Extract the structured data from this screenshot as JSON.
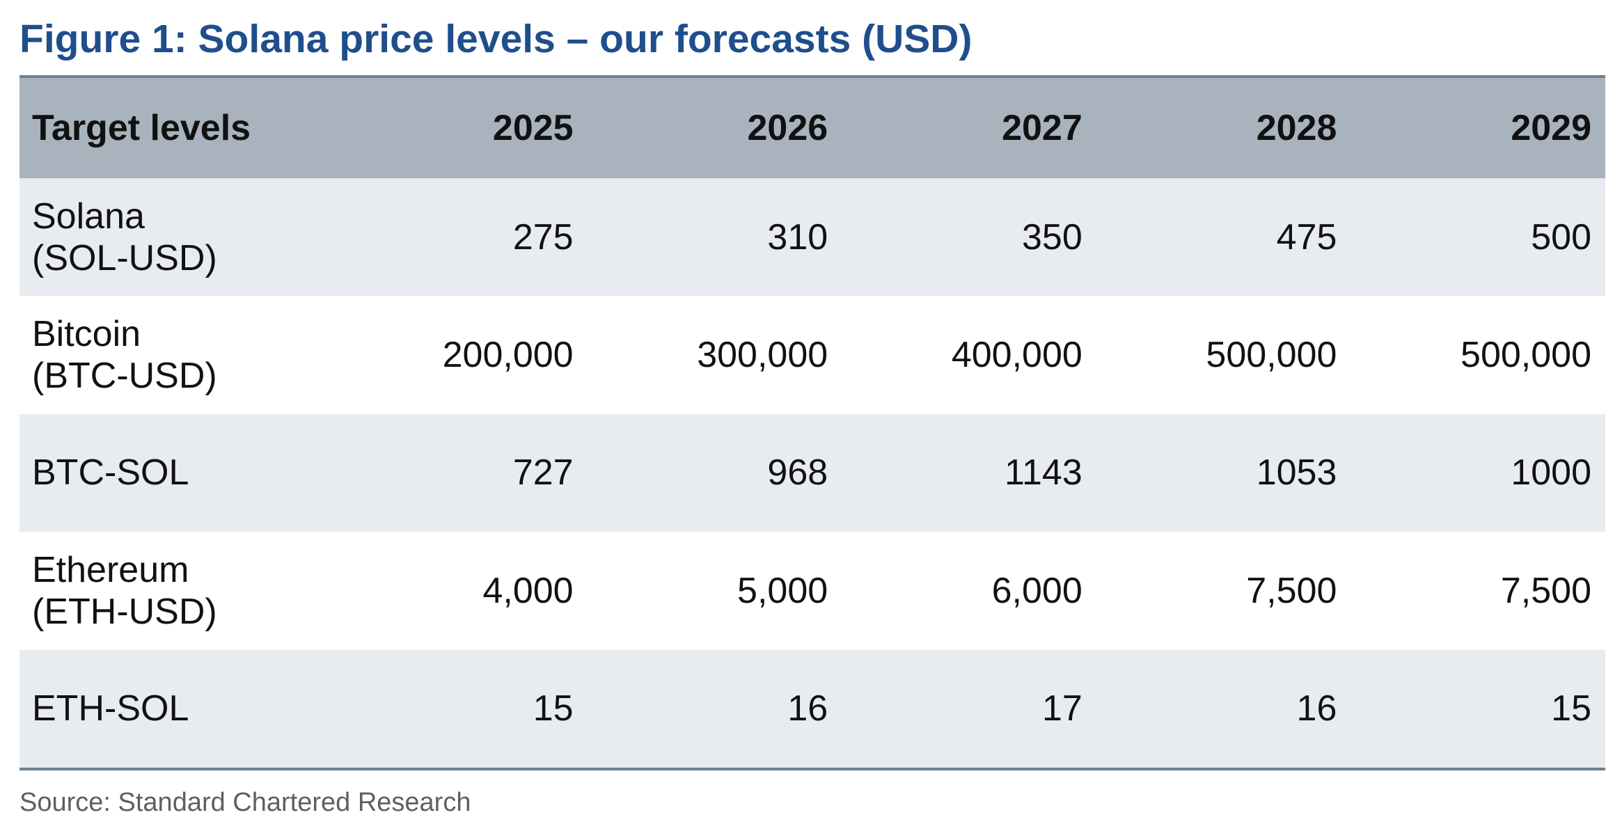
{
  "title": "Figure 1: Solana price levels – our forecasts (USD)",
  "table": {
    "header": [
      "Target levels",
      "2025",
      "2026",
      "2027",
      "2028",
      "2029"
    ],
    "rows": [
      {
        "label": [
          "Solana",
          "(SOL-USD)"
        ],
        "values": [
          "275",
          "310",
          "350",
          "475",
          "500"
        ]
      },
      {
        "label": [
          "Bitcoin",
          "(BTC-USD)"
        ],
        "values": [
          "200,000",
          "300,000",
          "400,000",
          "500,000",
          "500,000"
        ]
      },
      {
        "label": [
          "BTC-SOL"
        ],
        "values": [
          "727",
          "968",
          "1143",
          "1053",
          "1000"
        ]
      },
      {
        "label": [
          "Ethereum",
          "(ETH-USD)"
        ],
        "values": [
          "4,000",
          "5,000",
          "6,000",
          "7,500",
          "7,500"
        ]
      },
      {
        "label": [
          "ETH-SOL"
        ],
        "values": [
          "15",
          "16",
          "17",
          "16",
          "15"
        ]
      }
    ]
  },
  "source": "Source: Standard Chartered Research",
  "colors": {
    "title": "#1f4e8c",
    "header_bg": "#a9b3bd",
    "band_bg": "#e8ebf0",
    "rule": "#6f7f8f"
  }
}
